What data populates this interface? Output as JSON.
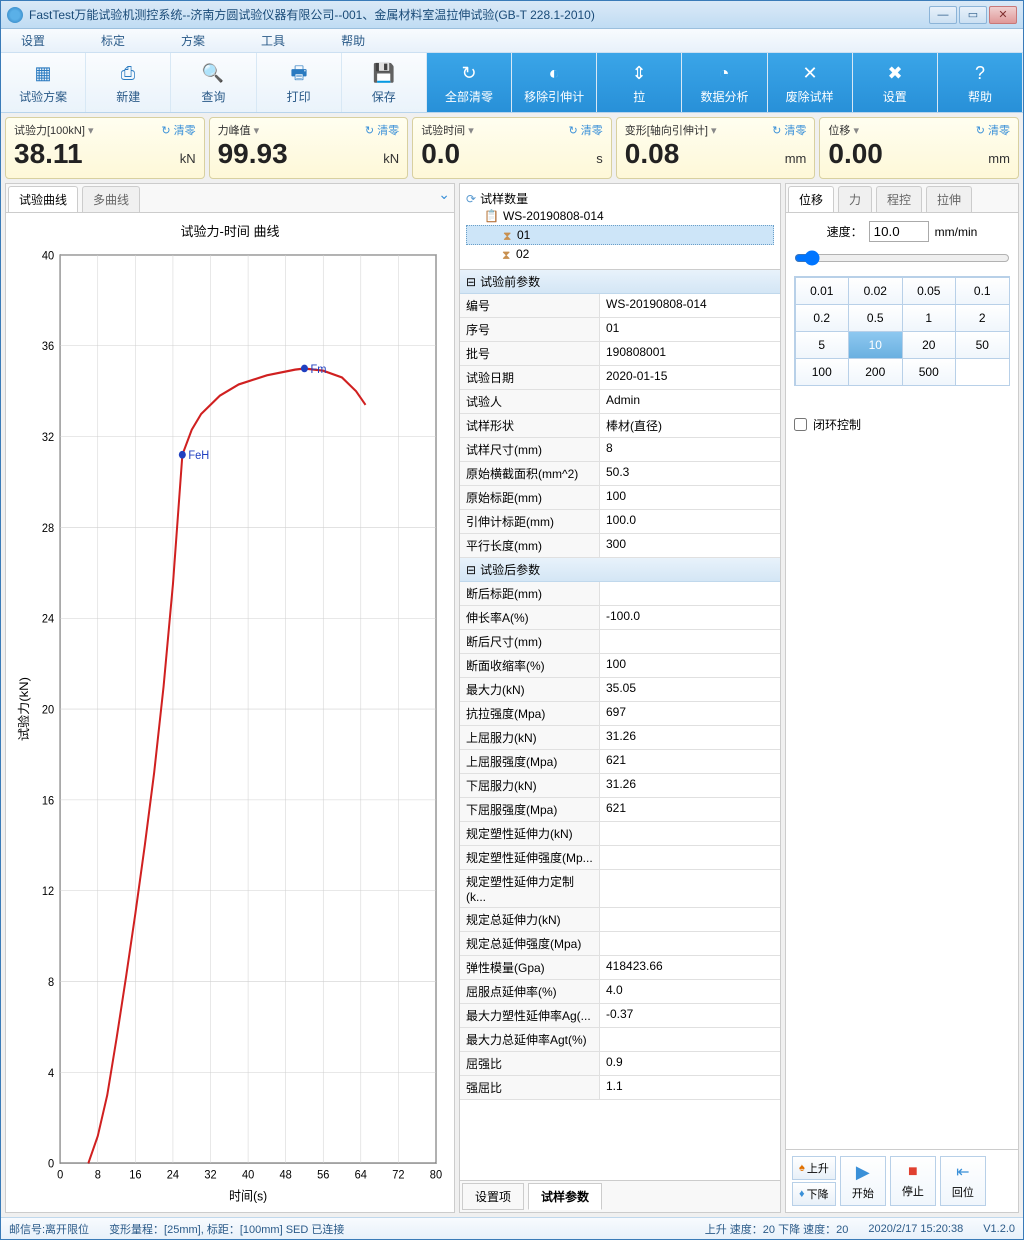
{
  "window": {
    "title": "FastTest万能试验机测控系统--济南方圆试验仪器有限公司--001、金属材料室温拉伸试验(GB-T 228.1-2010)"
  },
  "menu": [
    "设置",
    "标定",
    "方案",
    "工具",
    "帮助"
  ],
  "toolbar": [
    {
      "label": "试验方案",
      "blue": false
    },
    {
      "label": "新建",
      "blue": false
    },
    {
      "label": "查询",
      "blue": false
    },
    {
      "label": "打印",
      "blue": false
    },
    {
      "label": "保存",
      "blue": false
    },
    {
      "label": "全部清零",
      "blue": true
    },
    {
      "label": "移除引伸计",
      "blue": true
    },
    {
      "label": "拉",
      "blue": true
    },
    {
      "label": "数据分析",
      "blue": true
    },
    {
      "label": "废除试样",
      "blue": true
    },
    {
      "label": "设置",
      "blue": true
    },
    {
      "label": "帮助",
      "blue": true
    }
  ],
  "readouts": [
    {
      "name": "试验力[100kN]",
      "value": "38.11",
      "unit": "kN",
      "clear": "清零"
    },
    {
      "name": "力峰值",
      "value": "99.93",
      "unit": "kN",
      "clear": "清零"
    },
    {
      "name": "试验时间",
      "value": "0.0",
      "unit": "s",
      "clear": "清零"
    },
    {
      "name": "变形[轴向引伸计]",
      "value": "0.08",
      "unit": "mm",
      "clear": "清零"
    },
    {
      "name": "位移",
      "value": "0.00",
      "unit": "mm",
      "clear": "清零"
    }
  ],
  "leftTabs": {
    "active": "试验曲线",
    "other": "多曲线"
  },
  "chart": {
    "title": "试验力-时间 曲线",
    "xlabel": "时间(s)",
    "ylabel": "试验力(kN)",
    "xlim": [
      0,
      80
    ],
    "xtick": 8,
    "ylim": [
      0,
      40
    ],
    "ytick": 4,
    "line_color": "#d02020",
    "marker_color": "#2040c0",
    "grid_color": "#d0d0d0",
    "axis_color": "#000000",
    "bg": "#ffffff",
    "markers": [
      {
        "label": "FeH",
        "x": 26,
        "y": 31.2
      },
      {
        "label": "Fm",
        "x": 52,
        "y": 35.0
      }
    ],
    "points": [
      [
        6,
        0
      ],
      [
        8,
        1.2
      ],
      [
        10,
        3.0
      ],
      [
        12,
        5.5
      ],
      [
        14,
        8.2
      ],
      [
        16,
        11.0
      ],
      [
        18,
        14.0
      ],
      [
        20,
        17.2
      ],
      [
        22,
        21.0
      ],
      [
        24,
        25.5
      ],
      [
        26,
        31.2
      ],
      [
        28,
        32.3
      ],
      [
        30,
        33.0
      ],
      [
        34,
        33.8
      ],
      [
        38,
        34.3
      ],
      [
        44,
        34.7
      ],
      [
        50,
        34.95
      ],
      [
        52,
        35.0
      ],
      [
        56,
        34.9
      ],
      [
        60,
        34.6
      ],
      [
        63,
        34.0
      ],
      [
        65,
        33.4
      ]
    ]
  },
  "tree": {
    "header": "试样数量",
    "batch": "WS-20190808-014",
    "items": [
      {
        "id": "01",
        "selected": true
      },
      {
        "id": "02",
        "selected": false
      }
    ]
  },
  "pre_header": "试验前参数",
  "pre_params": [
    {
      "k": "编号",
      "v": "WS-20190808-014"
    },
    {
      "k": "序号",
      "v": "01"
    },
    {
      "k": "批号",
      "v": "190808001"
    },
    {
      "k": "试验日期",
      "v": "2020-01-15"
    },
    {
      "k": "试验人",
      "v": "Admin"
    },
    {
      "k": "试样形状",
      "v": "棒材(直径)"
    },
    {
      "k": "试样尺寸(mm)",
      "v": "8"
    },
    {
      "k": "原始横截面积(mm^2)",
      "v": "50.3"
    },
    {
      "k": "原始标距(mm)",
      "v": "100"
    },
    {
      "k": "引伸计标距(mm)",
      "v": "100.0"
    },
    {
      "k": "平行长度(mm)",
      "v": "300"
    }
  ],
  "post_header": "试验后参数",
  "post_params": [
    {
      "k": "断后标距(mm)",
      "v": ""
    },
    {
      "k": "伸长率A(%)",
      "v": "-100.0"
    },
    {
      "k": "断后尺寸(mm)",
      "v": ""
    },
    {
      "k": "断面收缩率(%)",
      "v": "100"
    },
    {
      "k": "最大力(kN)",
      "v": "35.05"
    },
    {
      "k": "抗拉强度(Mpa)",
      "v": "697"
    },
    {
      "k": "上屈服力(kN)",
      "v": "31.26"
    },
    {
      "k": "上屈服强度(Mpa)",
      "v": "621"
    },
    {
      "k": "下屈服力(kN)",
      "v": "31.26"
    },
    {
      "k": "下屈服强度(Mpa)",
      "v": "621"
    },
    {
      "k": "规定塑性延伸力(kN)",
      "v": ""
    },
    {
      "k": "规定塑性延伸强度(Mp...",
      "v": ""
    },
    {
      "k": "规定塑性延伸力定制(k...",
      "v": ""
    },
    {
      "k": "规定总延伸力(kN)",
      "v": ""
    },
    {
      "k": "规定总延伸强度(Mpa)",
      "v": ""
    },
    {
      "k": "弹性模量(Gpa)",
      "v": "418423.66"
    },
    {
      "k": "屈服点延伸率(%)",
      "v": "4.0"
    },
    {
      "k": "最大力塑性延伸率Ag(...",
      "v": "-0.37"
    },
    {
      "k": "最大力总延伸率Agt(%)",
      "v": ""
    },
    {
      "k": "屈强比",
      "v": "0.9"
    },
    {
      "k": "强屈比",
      "v": "1.1"
    }
  ],
  "midBottomTabs": {
    "a": "设置项",
    "b": "试样参数"
  },
  "rightTabs": [
    "位移",
    "力",
    "程控",
    "拉伸"
  ],
  "speed": {
    "label": "速度：",
    "value": "10.0",
    "unit": "mm/min"
  },
  "speedBtns": [
    "0.01",
    "0.02",
    "0.05",
    "0.1",
    "0.2",
    "0.5",
    "1",
    "2",
    "5",
    "10",
    "20",
    "50",
    "100",
    "200",
    "500"
  ],
  "speedActive": "10",
  "closedLoop": "闭环控制",
  "updown": {
    "up": "上升",
    "down": "下降"
  },
  "bigbtns": {
    "start": "开始",
    "stop": "停止",
    "return": "回位"
  },
  "status": {
    "left": "邮信号:离开限位",
    "mid": "变形量程：[25mm], 标距：[100mm]  SED 已连接",
    "right1": "上升 速度：20 下降 速度：20",
    "time": "2020/2/17 15:20:38",
    "ver": "V1.2.0"
  }
}
